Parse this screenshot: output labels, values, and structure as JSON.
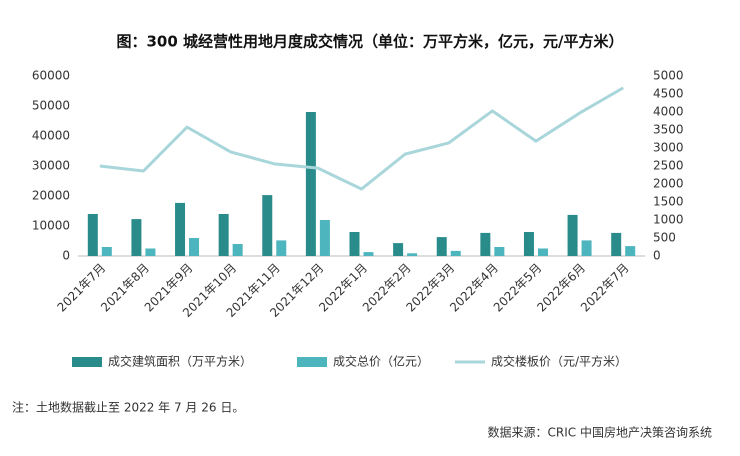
{
  "chart_data": {
    "type": "bar_line",
    "title": "图：300 城经营性用地月度成交情况（单位：万平方米，亿元，元/平方米）",
    "categories": [
      "2021年7月",
      "2021年8月",
      "2021年9月",
      "2021年10月",
      "2021年11月",
      "2021年12月",
      "2022年1月",
      "2022年2月",
      "2022年3月",
      "2022年4月",
      "2022年5月",
      "2022年6月",
      "2022年7月"
    ],
    "series": [
      {
        "name": "成交建筑面积（万平方米）",
        "color": "#2a8c8a",
        "type": "bar",
        "axis": "y",
        "values": [
          14000,
          12300,
          17700,
          14000,
          20300,
          48000,
          8000,
          4300,
          6300,
          7700,
          8000,
          13700,
          7700
        ]
      },
      {
        "name": "成交总价（亿元）",
        "color": "#4cb5bd",
        "type": "bar",
        "axis": "y",
        "values": [
          3000,
          2500,
          6000,
          4000,
          5200,
          12000,
          1300,
          900,
          1700,
          3000,
          2500,
          5200,
          3300
        ]
      },
      {
        "name": "成交楼板价（元/平方米）",
        "color": "#a8d6da",
        "type": "line",
        "axis": "y2",
        "values": [
          2500,
          2360,
          3580,
          2890,
          2560,
          2440,
          1860,
          2830,
          3140,
          4030,
          3190,
          3970,
          4670
        ]
      }
    ],
    "ylim": [
      0,
      60000
    ],
    "yticks": [
      0,
      10000,
      20000,
      30000,
      40000,
      50000,
      60000
    ],
    "y2lim": [
      0,
      5000
    ],
    "y2ticks": [
      0,
      500,
      1000,
      1500,
      2000,
      2500,
      3000,
      3500,
      4000,
      4500,
      5000
    ],
    "grid": false,
    "legend": "bottom",
    "note": "注：土地数据截止至 2022 年 7 月 26 日。",
    "source": "数据来源：CRIC 中国房地产决策咨询系统"
  }
}
